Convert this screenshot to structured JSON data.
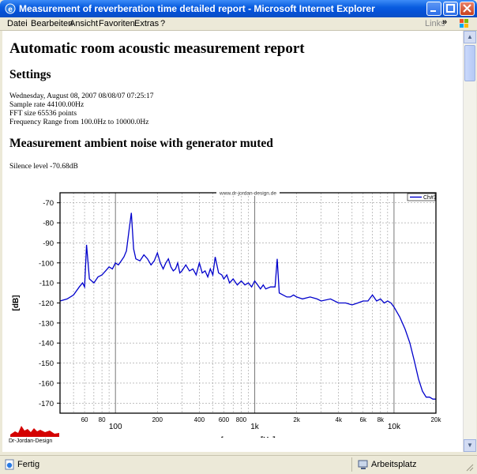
{
  "window": {
    "title": "Measurement of reverberation time detailed report - Microsoft Internet Explorer"
  },
  "menu": {
    "items": [
      "Datei",
      "Bearbeiten",
      "Ansicht",
      "Favoriten",
      "Extras",
      "?"
    ],
    "links_label": "Links"
  },
  "report": {
    "title": "Automatic room acoustic measurement report",
    "settings_heading": "Settings",
    "settings_lines": [
      "Wednesday, August 08, 2007 08/08/07 07:25:17",
      "Sample rate 44100.00Hz",
      "FFT size 65536 points",
      "Frequency Range from 100.0Hz to 10000.0Hz"
    ],
    "noise_heading": "Measurement ambient noise with generator muted",
    "silence_level": "Silence level -70.68dB"
  },
  "chart_data": {
    "type": "line",
    "title": "www.dr-jordan-design.de",
    "xlabel": "frequency [Hz]",
    "ylabel": "[dB]",
    "x_scale": "log",
    "xlim": [
      40,
      20000
    ],
    "ylim": [
      -175,
      -65
    ],
    "y_ticks": [
      -70,
      -80,
      -90,
      -100,
      -110,
      -120,
      -130,
      -140,
      -150,
      -160,
      -170
    ],
    "x_minor_ticks": [
      {
        "v": 60,
        "l": "60"
      },
      {
        "v": 80,
        "l": "80"
      },
      {
        "v": 200,
        "l": "200"
      },
      {
        "v": 400,
        "l": "400"
      },
      {
        "v": 600,
        "l": "600"
      },
      {
        "v": 800,
        "l": "800"
      },
      {
        "v": 2000,
        "l": "2k"
      },
      {
        "v": 4000,
        "l": "4k"
      },
      {
        "v": 6000,
        "l": "6k"
      },
      {
        "v": 8000,
        "l": "8k"
      },
      {
        "v": 20000,
        "l": "20k"
      }
    ],
    "x_major_ticks": [
      {
        "v": 100,
        "l": "100"
      },
      {
        "v": 1000,
        "l": "1k"
      },
      {
        "v": 10000,
        "l": "10k"
      }
    ],
    "grid": true,
    "legend_position": "top-right",
    "series": [
      {
        "name": "Ch#1",
        "color": "#0000cc",
        "x": [
          40,
          45,
          50,
          55,
          58,
          60,
          62,
          65,
          70,
          75,
          80,
          85,
          90,
          95,
          100,
          105,
          110,
          115,
          120,
          125,
          130,
          135,
          140,
          150,
          160,
          170,
          180,
          190,
          200,
          210,
          220,
          230,
          240,
          250,
          260,
          270,
          280,
          290,
          300,
          320,
          340,
          360,
          380,
          400,
          420,
          440,
          460,
          480,
          500,
          520,
          550,
          580,
          600,
          630,
          660,
          700,
          750,
          800,
          850,
          900,
          950,
          1000,
          1050,
          1100,
          1150,
          1200,
          1300,
          1400,
          1450,
          1500,
          1600,
          1700,
          1800,
          1900,
          2000,
          2200,
          2500,
          2800,
          3000,
          3500,
          4000,
          4500,
          5000,
          5500,
          6000,
          6500,
          7000,
          7500,
          8000,
          8500,
          9000,
          9500,
          10000,
          11000,
          12000,
          13000,
          14000,
          15000,
          16000,
          17000,
          18000,
          19000,
          20000
        ],
        "values": [
          -119,
          -118,
          -116,
          -112,
          -110,
          -112,
          -91,
          -108,
          -110,
          -107,
          -106,
          -104,
          -102,
          -103,
          -100,
          -101,
          -99,
          -97,
          -94,
          -84,
          -75,
          -93,
          -98,
          -99,
          -96,
          -98,
          -101,
          -99,
          -95,
          -100,
          -103,
          -100,
          -98,
          -102,
          -104,
          -103,
          -100,
          -105,
          -104,
          -101,
          -104,
          -103,
          -106,
          -100,
          -105,
          -104,
          -107,
          -103,
          -106,
          -97,
          -105,
          -106,
          -108,
          -106,
          -110,
          -108,
          -111,
          -109,
          -111,
          -110,
          -112,
          -109,
          -111,
          -113,
          -111,
          -113,
          -112,
          -112,
          -98,
          -115,
          -116,
          -117,
          -117,
          -116,
          -117,
          -118,
          -117,
          -118,
          -119,
          -118,
          -120,
          -120,
          -121,
          -120,
          -119,
          -119,
          -116,
          -119,
          -118,
          -120,
          -119,
          -120,
          -122,
          -127,
          -133,
          -140,
          -149,
          -158,
          -164,
          -167,
          -167,
          -168,
          -168
        ]
      }
    ]
  },
  "logo": {
    "text": "Dr-Jordan-Design"
  },
  "status": {
    "left": "Fertig",
    "zone": "Arbeitsplatz"
  }
}
